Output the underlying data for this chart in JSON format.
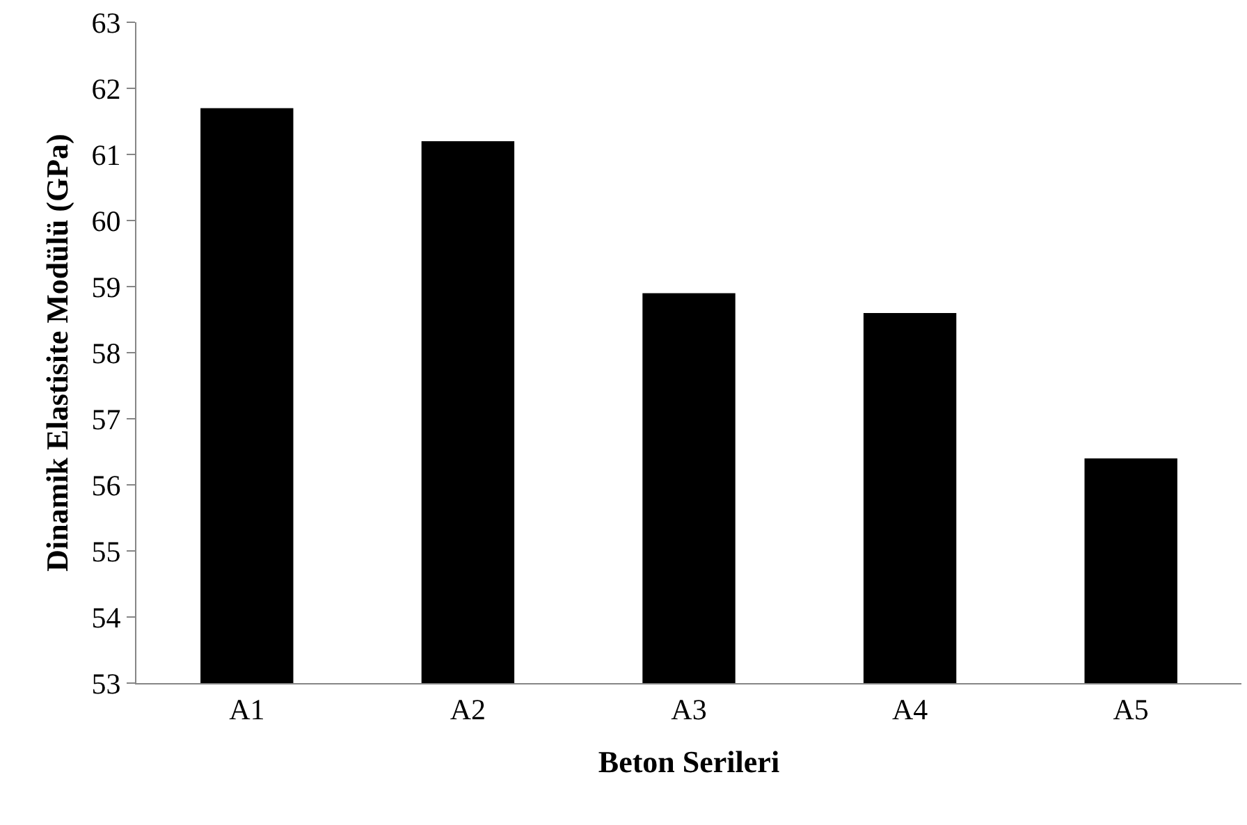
{
  "chart_data": {
    "type": "bar",
    "xlabel": "Beton Serileri",
    "ylabel": "Dinamik Elastisite Modülü (GPa)",
    "categories": [
      "A1",
      "A2",
      "A3",
      "A4",
      "A5"
    ],
    "values": [
      61.7,
      61.2,
      58.9,
      58.6,
      56.4
    ],
    "color": "#000000",
    "ylim": [
      53,
      63
    ],
    "yticks": [
      53,
      54,
      55,
      56,
      57,
      58,
      59,
      60,
      61,
      62,
      63
    ],
    "grid": false
  }
}
